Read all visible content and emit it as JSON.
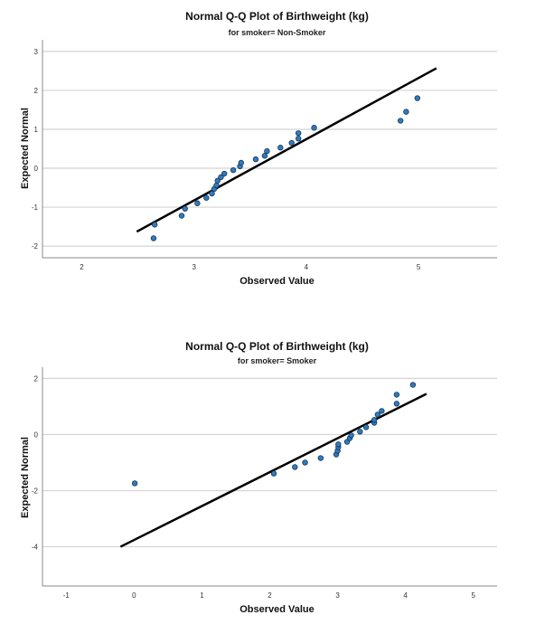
{
  "chart_data": [
    {
      "type": "scatter",
      "title": "Normal Q-Q Plot of Birthweight (kg)",
      "subtitle": "for smoker= Non-Smoker",
      "xlabel": "Observed Value",
      "ylabel": "Expected Normal",
      "xlim": [
        1.65,
        5.7
      ],
      "ylim": [
        -2.3,
        3.3
      ],
      "xticks": [
        2,
        3,
        4,
        5
      ],
      "yticks": [
        -2,
        -1,
        0,
        1,
        2,
        3
      ],
      "grid": "horizontal",
      "point_color": "#2e7bbf",
      "points": [
        [
          2.64,
          -1.8
        ],
        [
          2.65,
          -1.45
        ],
        [
          2.89,
          -1.22
        ],
        [
          2.92,
          -1.04
        ],
        [
          3.03,
          -0.9
        ],
        [
          3.11,
          -0.76
        ],
        [
          3.16,
          -0.65
        ],
        [
          3.18,
          -0.53
        ],
        [
          3.2,
          -0.44
        ],
        [
          3.21,
          -0.32
        ],
        [
          3.24,
          -0.23
        ],
        [
          3.27,
          -0.14
        ],
        [
          3.35,
          -0.05
        ],
        [
          3.41,
          0.05
        ],
        [
          3.42,
          0.14
        ],
        [
          3.55,
          0.23
        ],
        [
          3.63,
          0.32
        ],
        [
          3.65,
          0.44
        ],
        [
          3.77,
          0.53
        ],
        [
          3.87,
          0.65
        ],
        [
          3.93,
          0.76
        ],
        [
          3.93,
          0.9
        ],
        [
          4.07,
          1.04
        ],
        [
          4.84,
          1.22
        ],
        [
          4.89,
          1.45
        ],
        [
          4.99,
          1.8
        ]
      ],
      "reference_line": [
        [
          2.49,
          -1.63
        ],
        [
          5.16,
          2.57
        ]
      ]
    },
    {
      "type": "scatter",
      "title": "Normal Q-Q Plot of Birthweight (kg)",
      "subtitle": "for smoker= Smoker",
      "xlabel": "Observed Value",
      "ylabel": "Expected Normal",
      "xlim": [
        -1.35,
        5.35
      ],
      "ylim": [
        -5.4,
        2.4
      ],
      "xticks": [
        -1,
        0,
        1,
        2,
        3,
        4,
        5
      ],
      "yticks": [
        -4,
        -2,
        0,
        2
      ],
      "grid": "horizontal",
      "point_color": "#2e7bbf",
      "points": [
        [
          0.01,
          -1.74
        ],
        [
          2.06,
          -1.39
        ],
        [
          2.37,
          -1.16
        ],
        [
          2.52,
          -1.0
        ],
        [
          2.75,
          -0.84
        ],
        [
          2.98,
          -0.71
        ],
        [
          3.0,
          -0.58
        ],
        [
          3.01,
          -0.45
        ],
        [
          3.01,
          -0.35
        ],
        [
          3.14,
          -0.26
        ],
        [
          3.18,
          -0.13
        ],
        [
          3.2,
          -0.03
        ],
        [
          3.33,
          0.1
        ],
        [
          3.42,
          0.26
        ],
        [
          3.54,
          0.42
        ],
        [
          3.54,
          0.52
        ],
        [
          3.59,
          0.71
        ],
        [
          3.65,
          0.84
        ],
        [
          3.87,
          1.1
        ],
        [
          3.87,
          1.42
        ],
        [
          4.11,
          1.77
        ]
      ],
      "reference_line": [
        [
          -0.2,
          -4.0
        ],
        [
          4.31,
          1.45
        ]
      ]
    }
  ]
}
